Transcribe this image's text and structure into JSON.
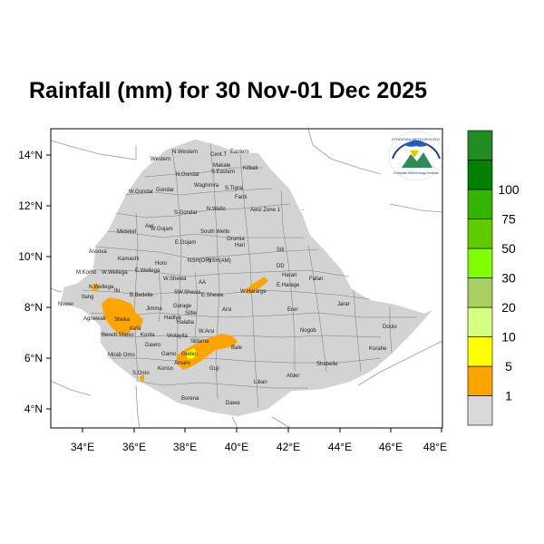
{
  "title": "Rainfall (mm) for 30 Nov-01 Dec 2025",
  "x_ticks": [
    "34°E",
    "36°E",
    "38°E",
    "40°E",
    "42°E",
    "44°E",
    "46°E",
    "48°E"
  ],
  "y_ticks": [
    "14°N",
    "12°N",
    "10°N",
    "8°N",
    "6°N",
    "4°N"
  ],
  "legend": {
    "levels": [
      "1",
      "5",
      "10",
      "20",
      "30",
      "50",
      "75",
      "100"
    ],
    "colors": [
      "#d9d9d9",
      "#ffa500",
      "#ffff00",
      "#d4ff80",
      "#a8cf60",
      "#80ff00",
      "#60cc00",
      "#33b500",
      "#008000",
      "#228b22"
    ]
  },
  "logo": {
    "arc_text": "ETHIOPIAN METEOROLOGY",
    "caption": "Ethiopian Meteorology Institute"
  },
  "regions": [
    "Western",
    "N.Western",
    "Cent.T",
    "Eastern",
    "Makale",
    "S.Eastern",
    "Kilbati",
    "W.Gondar",
    "Gondar",
    "N.Gondar",
    "Waghimra",
    "S.Tigrai",
    "Fanti",
    "Awsi Zone 1",
    "Metekel",
    "S.Gondar",
    "N.Wello",
    "W.Gojam",
    "Awi",
    "E.Gojam",
    "South Wello",
    "Oromia",
    "Hari",
    "Siti",
    "Assosa",
    "Kamashi",
    "Horo",
    "NSH(OR)",
    "NSH(AM)",
    "DD",
    "Harari",
    "Fafan",
    "M.Komo",
    "W.Wellega",
    "E.Wellega",
    "W.Shewa",
    "AA",
    "Nuwer",
    "Ilu",
    "B.Bedelle",
    "SW.Shewa",
    "E.Shewa",
    "W.Hararge",
    "E.Harage",
    "Jarar",
    "Itang",
    "Agnewak",
    "Sheka",
    "Jimma",
    "Gurage",
    "Arsi",
    "Erer",
    "K.Wellega",
    "Kefa",
    "Hadiya",
    "Halaba",
    "Siltie",
    "Bench Sheko",
    "Konta",
    "Wolayita",
    "Sidama",
    "W.Arsi",
    "Nogob",
    "Doolo",
    "Mirab Omo",
    "Dawro",
    "Gamo",
    "Gedeo",
    "Bale",
    "Korahe",
    "S.Omo",
    "Konso",
    "Amaro",
    "Guji",
    "Shabelle",
    "Afder",
    "Liban",
    "Borena",
    "Dawa"
  ]
}
